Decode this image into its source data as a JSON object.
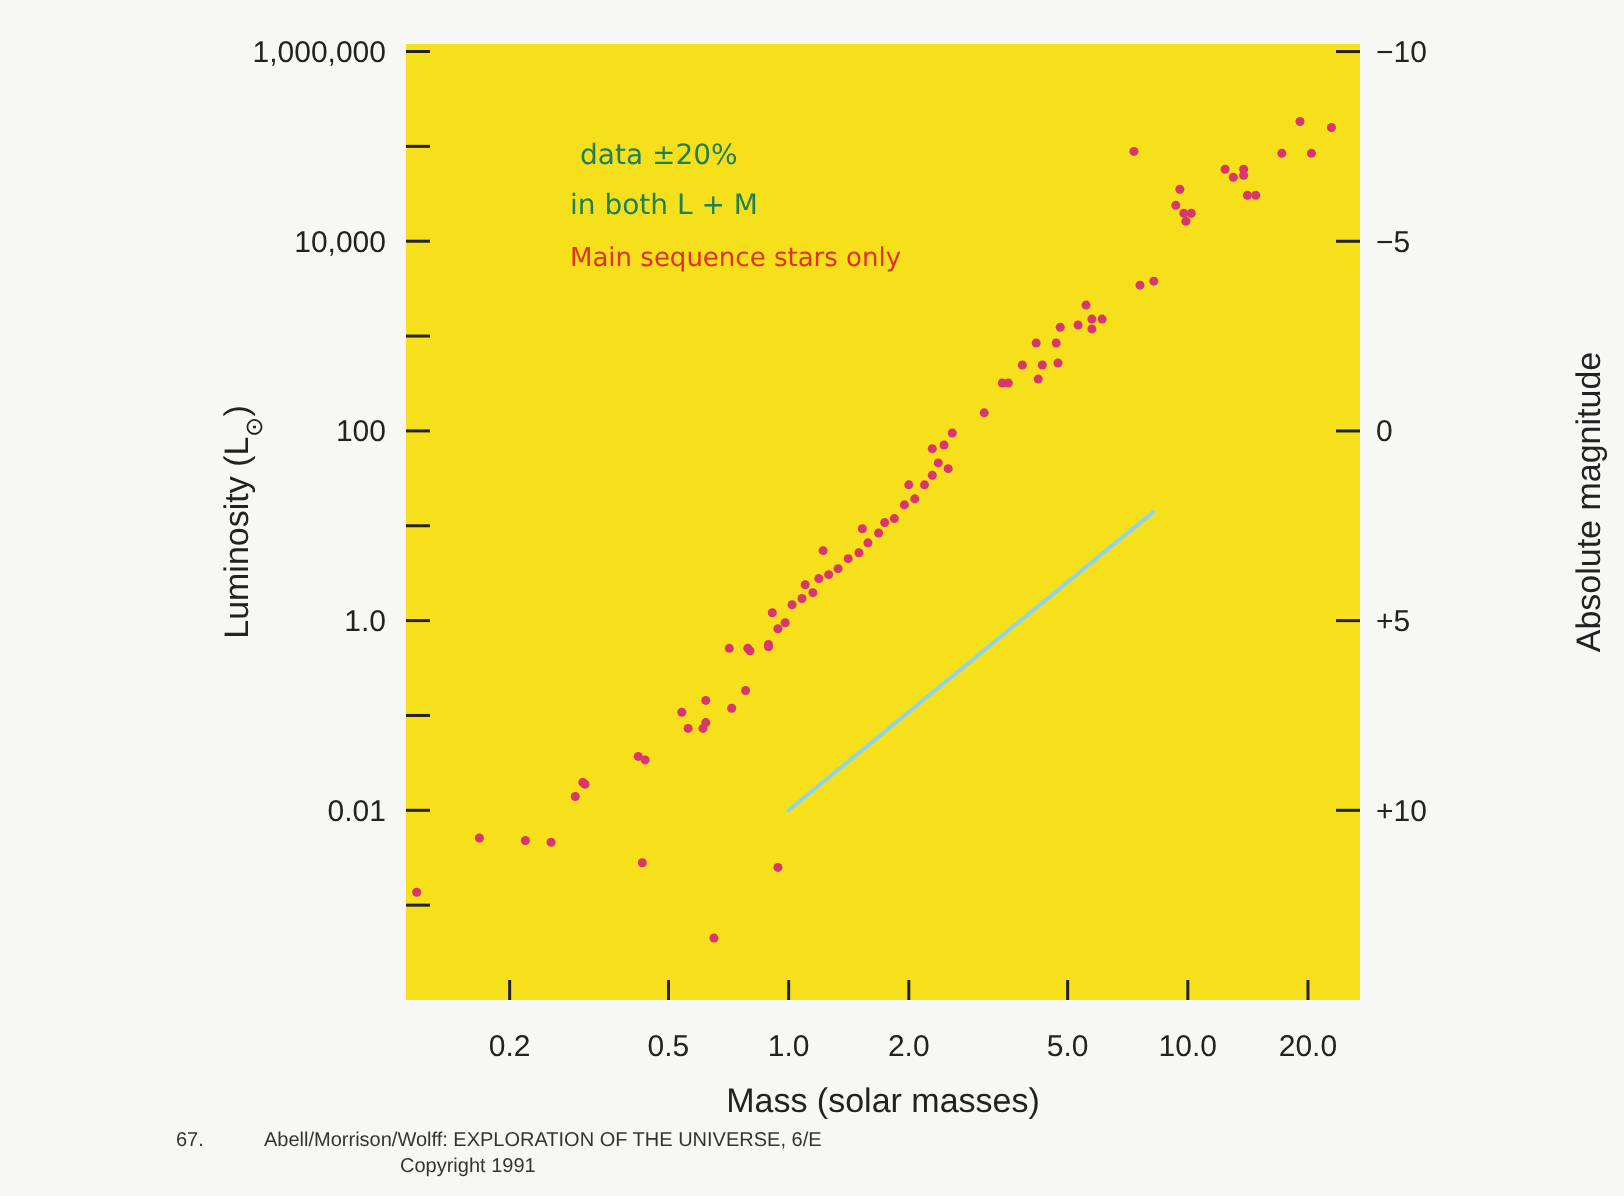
{
  "chart_data": {
    "type": "scatter",
    "xlabel": "Mass (solar masses)",
    "ylabel": "Luminosity (L$_{⊙}$)",
    "y2label": "Absolute magnitude",
    "log": "xy",
    "xlim": [
      0.11,
      27
    ],
    "ylim": [
      0.0001,
      1200000
    ],
    "y2lim": [
      15,
      -10.2
    ],
    "xticks": [
      0.2,
      0.5,
      {
        "value": 1,
        "label": "1.0"
      },
      {
        "value": 2,
        "label": "2.0"
      },
      {
        "value": 5,
        "label": "5.0"
      },
      {
        "value": 10,
        "label": "10.0"
      },
      {
        "value": 20,
        "label": "20.0"
      }
    ],
    "yticks": [
      {
        "value": 0.001,
        "label": null
      },
      0.01,
      {
        "value": 0.1,
        "label": null
      },
      {
        "value": 1,
        "label": "1.0"
      },
      {
        "value": 10,
        "label": null
      },
      100,
      {
        "value": 1000,
        "label": null
      },
      {
        "value": 10000,
        "label": "10,000"
      },
      {
        "value": 100000,
        "label": null
      },
      {
        "value": 1000000,
        "label": "1,000,000"
      }
    ],
    "y2ticks": [
      {
        "value": -10,
        "label": "−10"
      },
      {
        "value": -5,
        "label": "−5"
      },
      0,
      {
        "value": 5,
        "label": "+5"
      },
      {
        "value": 10,
        "label": "+10"
      }
    ],
    "series": [
      {
        "marker": "circle",
        "color": "#d9366e",
        "x": [
          0.117,
          0.168,
          0.219,
          0.254,
          0.292,
          0.305,
          0.309,
          0.42,
          0.437,
          0.43,
          0.54,
          0.56,
          0.61,
          0.62,
          0.62,
          0.72,
          0.78,
          0.71,
          0.79,
          0.89,
          0.94,
          0.65,
          0.8,
          0.89,
          0.91,
          0.94,
          0.98,
          1.02,
          1.08,
          1.1,
          1.15,
          1.19,
          1.22,
          1.26,
          1.33,
          1.41,
          1.5,
          1.53,
          1.58,
          1.68,
          1.74,
          1.84,
          1.95,
          2.0,
          2.07,
          2.19,
          2.29,
          2.37,
          2.45,
          2.57,
          2.29,
          2.51,
          3.09,
          3.43,
          3.55,
          3.85,
          4.22,
          4.32,
          4.17,
          4.68,
          4.73,
          4.79,
          5.31,
          5.56,
          5.75,
          6.1,
          5.75,
          7.59,
          8.22,
          9.33,
          9.55,
          9.77,
          10.2,
          9.89,
          7.33,
          12.4,
          13.0,
          13.8,
          13.8,
          14.1,
          14.8,
          17.2,
          19.1,
          20.4,
          22.9
        ],
        "values": [
          0.00137,
          0.0051,
          0.0048,
          0.0046,
          0.014,
          0.0197,
          0.0188,
          0.037,
          0.034,
          0.0028,
          0.108,
          0.073,
          0.073,
          0.084,
          0.144,
          0.119,
          0.183,
          0.51,
          0.51,
          0.56,
          0.0025,
          0.00045,
          0.48,
          0.53,
          1.21,
          0.82,
          0.95,
          1.47,
          1.71,
          2.39,
          1.97,
          2.77,
          5.46,
          3.05,
          3.53,
          4.5,
          5.2,
          9.3,
          6.6,
          8.4,
          10.8,
          11.9,
          16.6,
          27,
          19.2,
          27,
          34,
          46,
          71,
          95,
          65,
          40,
          155,
          320,
          320,
          495,
          352,
          495,
          845,
          845,
          520,
          1240,
          1310,
          2120,
          1510,
          1510,
          1190,
          3440,
          3790,
          23900,
          35200,
          19700,
          19700,
          16200,
          88500,
          57300,
          47200,
          57300,
          49500,
          30500,
          30500,
          84400,
          183000,
          84400,
          158000
        ]
      },
      {
        "type": "line",
        "marker": "none",
        "color": "#8fd3e8",
        "x": [
          1.0,
          8.2
        ],
        "values": [
          0.01,
          14
        ]
      }
    ],
    "annotations": [
      "data ±20%",
      "in both L + M",
      "Main sequence stars only",
      "67.",
      "Abell/Morrison/Wolff: EXPLORATION OF THE UNIVERSE, 6/E",
      "Copyright 1991"
    ]
  }
}
